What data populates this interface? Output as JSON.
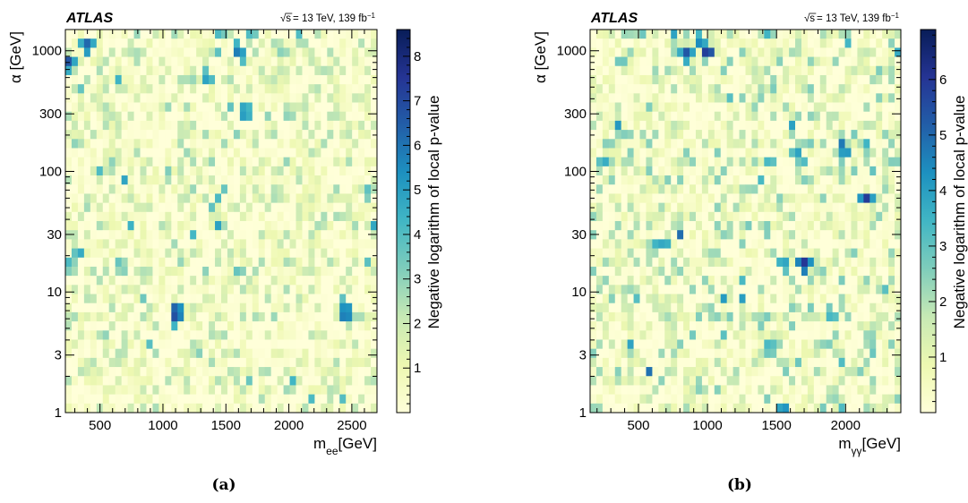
{
  "chart_data": [
    {
      "type": "heatmap",
      "experiment_label": "ATLAS",
      "energy_label": "= 13 TeV, 139 fb",
      "energy_label_sqrt": "√s",
      "energy_label_sup": "−1",
      "xlabel_main": "m",
      "xlabel_sub": "ee",
      "xlabel_unit": "[GeV]",
      "ylabel": "α [GeV]",
      "colorbar_label": "Negative logarithm of local p-value",
      "xlim": [
        225,
        2700
      ],
      "ylim": [
        1,
        1500
      ],
      "y_scale": "log",
      "x_ticks": [
        500,
        1000,
        1500,
        2000,
        2500
      ],
      "x_tick_labels": [
        "500",
        "1000",
        "1500",
        "2000",
        "2500"
      ],
      "y_ticks": [
        1,
        3,
        10,
        30,
        100,
        300,
        1000
      ],
      "y_tick_labels": [
        "1",
        "3",
        "10",
        "30",
        "100",
        "300",
        "1000"
      ],
      "colorbar_range": [
        0,
        8.6
      ],
      "colorbar_ticks": [
        1,
        2,
        3,
        4,
        5,
        6,
        7,
        8
      ],
      "colorbar_tick_labels": [
        "1",
        "2",
        "3",
        "4",
        "5",
        "6",
        "7",
        "8"
      ],
      "grid": false,
      "sub_caption": "(a)",
      "seed": 11,
      "hotspots": [
        {
          "x": 1600,
          "y": 1000,
          "v": 6.5
        },
        {
          "x": 1650,
          "y": 310,
          "v": 6.2
        },
        {
          "x": 1100,
          "y": 6.7,
          "v": 8.2
        },
        {
          "x": 2450,
          "y": 6.7,
          "v": 7.3
        },
        {
          "x": 1450,
          "y": 1400,
          "v": 4.5
        },
        {
          "x": 1700,
          "y": 1400,
          "v": 4.5
        },
        {
          "x": 400,
          "y": 1100,
          "v": 7.0
        },
        {
          "x": 250,
          "y": 800,
          "v": 7.0
        },
        {
          "x": 1350,
          "y": 600,
          "v": 5.5
        },
        {
          "x": 250,
          "y": 17,
          "v": 4.5
        },
        {
          "x": 650,
          "y": 17,
          "v": 4.0
        },
        {
          "x": 1600,
          "y": 15,
          "v": 4.0
        },
        {
          "x": 1950,
          "y": 1000,
          "v": 3.5
        },
        {
          "x": 2000,
          "y": 300,
          "v": 3.5
        }
      ]
    },
    {
      "type": "heatmap",
      "experiment_label": "ATLAS",
      "energy_label": "= 13 TeV, 139 fb",
      "energy_label_sqrt": "√s",
      "energy_label_sup": "−1",
      "xlabel_main": "m",
      "xlabel_sub": "γγ",
      "xlabel_unit": "[GeV]",
      "ylabel": "α [GeV]",
      "colorbar_label": "Negative logarithm of local p-value",
      "xlim": [
        150,
        2400
      ],
      "ylim": [
        1,
        1500
      ],
      "y_scale": "log",
      "x_ticks": [
        500,
        1000,
        1500,
        2000
      ],
      "x_tick_labels": [
        "500",
        "1000",
        "1500",
        "2000"
      ],
      "y_ticks": [
        1,
        3,
        10,
        30,
        100,
        300,
        1000
      ],
      "y_tick_labels": [
        "1",
        "3",
        "10",
        "30",
        "100",
        "300",
        "1000"
      ],
      "colorbar_range": [
        0,
        6.9
      ],
      "colorbar_ticks": [
        1,
        2,
        3,
        4,
        5,
        6
      ],
      "colorbar_tick_labels": [
        "1",
        "2",
        "3",
        "4",
        "5",
        "6"
      ],
      "grid": false,
      "sub_caption": "(b)",
      "seed": 29,
      "hotspots": [
        {
          "x": 1000,
          "y": 950,
          "v": 6.7
        },
        {
          "x": 850,
          "y": 950,
          "v": 5.6
        },
        {
          "x": 950,
          "y": 1200,
          "v": 5.0
        },
        {
          "x": 1700,
          "y": 17,
          "v": 6.6
        },
        {
          "x": 2150,
          "y": 60,
          "v": 6.0
        },
        {
          "x": 1550,
          "y": 1.1,
          "v": 4.8
        },
        {
          "x": 1550,
          "y": 17,
          "v": 4.5
        },
        {
          "x": 250,
          "y": 120,
          "v": 4.0
        },
        {
          "x": 1450,
          "y": 120,
          "v": 3.8
        },
        {
          "x": 1650,
          "y": 140,
          "v": 4.2
        },
        {
          "x": 650,
          "y": 25,
          "v": 4.3
        },
        {
          "x": 2400,
          "y": 1000,
          "v": 4.5
        },
        {
          "x": 1900,
          "y": 6.5,
          "v": 4.0
        },
        {
          "x": 1450,
          "y": 3.5,
          "v": 4.0
        }
      ]
    }
  ]
}
